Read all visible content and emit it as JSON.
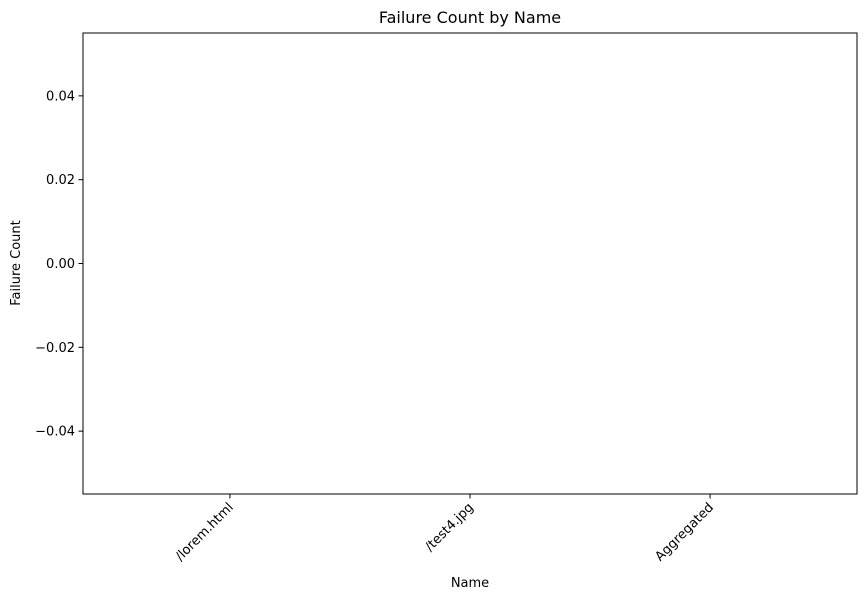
{
  "chart_data": {
    "type": "bar",
    "title": "Failure Count by Name",
    "xlabel": "Name",
    "ylabel": "Failure Count",
    "categories": [
      "/lorem.html",
      "/test4.jpg",
      "Aggregated"
    ],
    "values": [
      0,
      0,
      0
    ],
    "ylim": [
      -0.055,
      0.055
    ],
    "yticks": [
      0.04,
      0.02,
      0.0,
      -0.02,
      -0.04
    ],
    "ytick_labels": [
      "0.04",
      "0.02",
      "0.00",
      "−0.02",
      "−0.04"
    ],
    "xtick_rotation_deg": 45,
    "grid": false,
    "legend": "none",
    "colors": {
      "axis": "#000000",
      "background": "#ffffff"
    }
  }
}
